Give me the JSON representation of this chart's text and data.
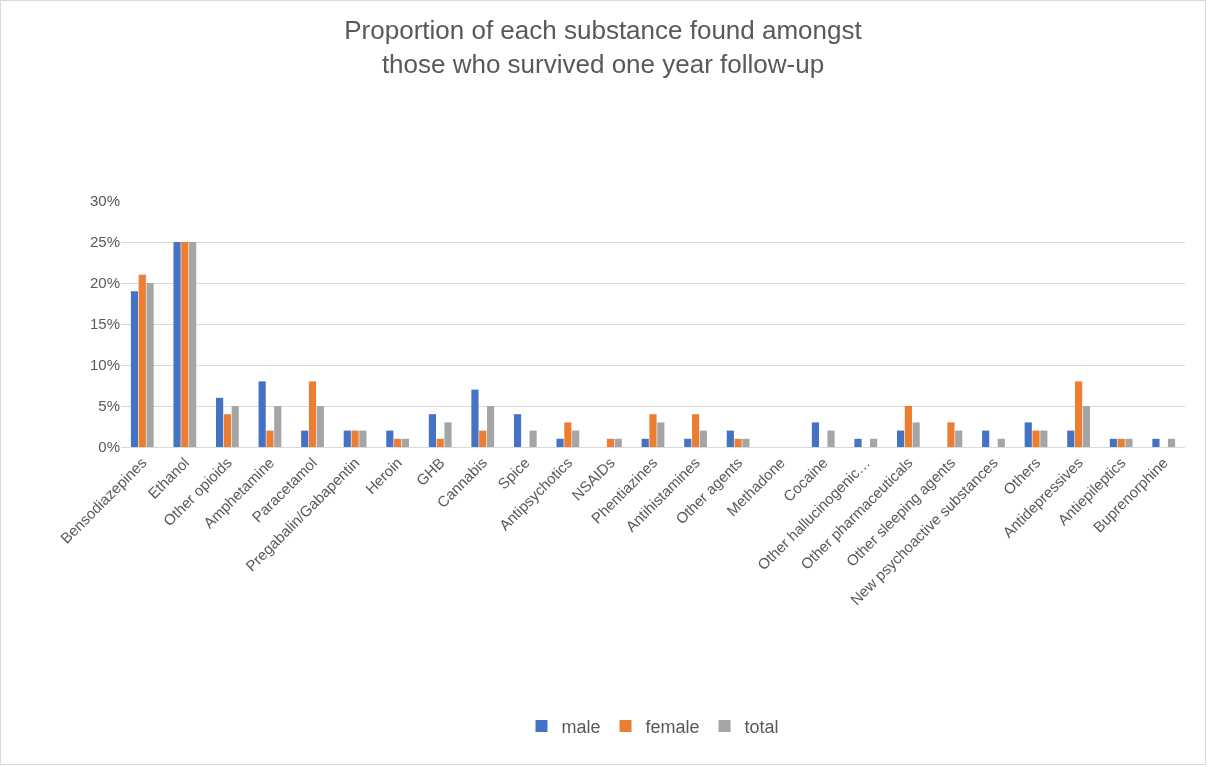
{
  "chart_data": {
    "type": "bar",
    "title": "Proportion of each substance found amongst those who survived one year follow-up",
    "categories": [
      "Bensodiazepines",
      "Ethanol",
      "Other opioids",
      "Amphetamine",
      "Paracetamol",
      "Pregabalin/Gabapentin",
      "Heroin",
      "GHB",
      "Cannabis",
      "Spice",
      "Antipsychotics",
      "NSAIDs",
      "Phentiazines",
      "Antihistamines",
      "Other agents",
      "Methadone",
      "Cocaine",
      "Other hallucinogenic…",
      "Other pharmaceuticals",
      "Other sleeping agents",
      "New psychoactive substances",
      "Others",
      "Antidepressives",
      "Antiepileptics",
      "Buprenorphine"
    ],
    "series": [
      {
        "name": "male",
        "color": "#4472c4",
        "values": [
          19,
          25,
          6,
          8,
          2,
          2,
          2,
          4,
          7,
          4,
          1,
          0,
          1,
          1,
          2,
          0,
          3,
          1,
          2,
          0,
          2,
          3,
          2,
          1,
          1
        ]
      },
      {
        "name": "female",
        "color": "#ed7d31",
        "values": [
          21,
          25,
          4,
          2,
          8,
          2,
          1,
          1,
          2,
          0,
          3,
          1,
          4,
          4,
          1,
          0,
          0,
          0,
          5,
          3,
          0,
          2,
          8,
          1,
          0
        ]
      },
      {
        "name": "total",
        "color": "#a5a5a5",
        "values": [
          20,
          25,
          5,
          5,
          5,
          2,
          1,
          3,
          5,
          2,
          2,
          1,
          3,
          2,
          1,
          0,
          2,
          1,
          3,
          2,
          1,
          2,
          5,
          1,
          1
        ]
      }
    ],
    "ylim": [
      0,
      30
    ],
    "yticks": [
      {
        "value": 0,
        "label": "0%"
      },
      {
        "value": 5,
        "label": "5%"
      },
      {
        "value": 10,
        "label": "10%"
      },
      {
        "value": 15,
        "label": "15%"
      },
      {
        "value": 20,
        "label": "20%"
      },
      {
        "value": 25,
        "label": "25%"
      },
      {
        "value": 30,
        "label": "30%"
      }
    ],
    "grid": "y",
    "legend": "bottom"
  }
}
